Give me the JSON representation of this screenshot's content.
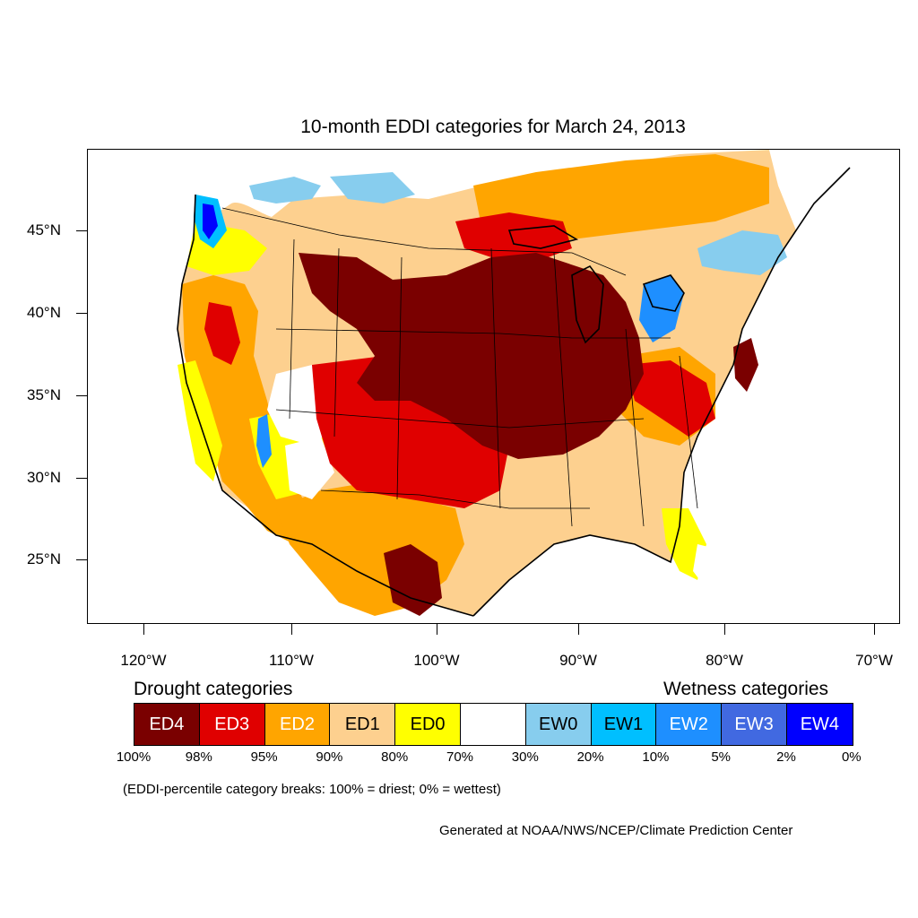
{
  "title": "10-month EDDI categories for March 24, 2013",
  "lat_labels": [
    "45°N",
    "40°N",
    "35°N",
    "30°N",
    "25°N"
  ],
  "lon_labels": [
    "120°W",
    "110°W",
    "100°W",
    "90°W",
    "80°W",
    "70°W"
  ],
  "legend": {
    "drought_heading": "Drought categories",
    "wetness_heading": "Wetness categories",
    "categories": [
      {
        "label": "ED4",
        "color": "#7a0000",
        "text_color": "#ffffff"
      },
      {
        "label": "ED3",
        "color": "#e00000",
        "text_color": "#ffffff"
      },
      {
        "label": "ED2",
        "color": "#ffa500",
        "text_color": "#ffffff"
      },
      {
        "label": "ED1",
        "color": "#fdd08f",
        "text_color": "#000000"
      },
      {
        "label": "ED0",
        "color": "#ffff00",
        "text_color": "#000000"
      },
      {
        "label": "",
        "color": "#ffffff",
        "text_color": "#000000"
      },
      {
        "label": "EW0",
        "color": "#87cdee",
        "text_color": "#000000"
      },
      {
        "label": "EW1",
        "color": "#00bfff",
        "text_color": "#000000"
      },
      {
        "label": "EW2",
        "color": "#1e8fff",
        "text_color": "#ffffff"
      },
      {
        "label": "EW3",
        "color": "#4169e1",
        "text_color": "#ffffff"
      },
      {
        "label": "EW4",
        "color": "#0000ff",
        "text_color": "#ffffff"
      }
    ],
    "percent_breaks": [
      "100%",
      "98%",
      "95%",
      "90%",
      "80%",
      "70%",
      "30%",
      "20%",
      "10%",
      "5%",
      "2%",
      "0%"
    ]
  },
  "note": "(EDDI-percentile category breaks: 100% = driest; 0% = wettest)",
  "credit": "Generated at NOAA/NWS/NCEP/Climate Prediction Center"
}
